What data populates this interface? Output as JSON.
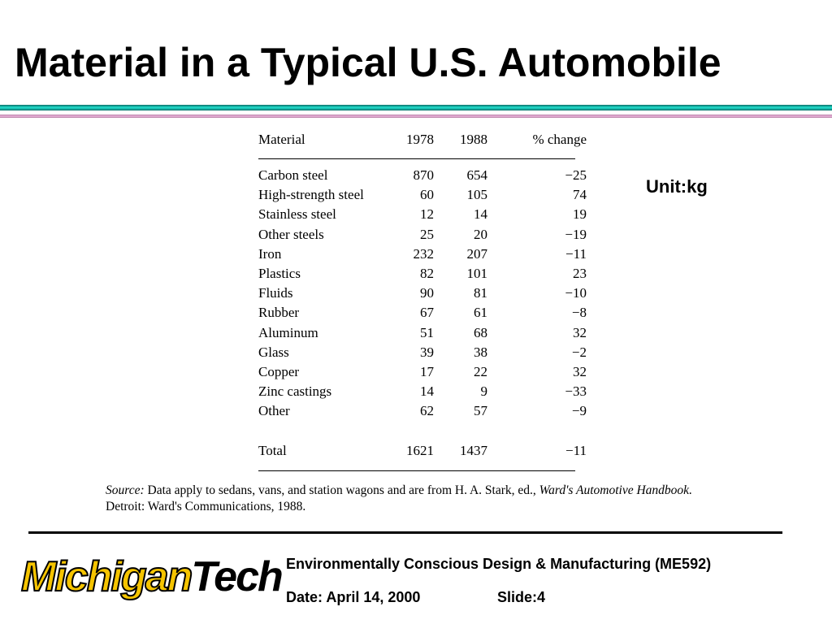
{
  "header": {
    "title": "Material in a Typical U.S. Automobile"
  },
  "unit": "Unit:kg",
  "table": {
    "columns": [
      "Material",
      "1978",
      "1988",
      "% change"
    ],
    "rows": [
      [
        "Carbon steel",
        "870",
        "654",
        "−25"
      ],
      [
        "High-strength steel",
        "60",
        "105",
        "74"
      ],
      [
        "Stainless steel",
        "12",
        "14",
        "19"
      ],
      [
        "Other steels",
        "25",
        "20",
        "−19"
      ],
      [
        "Iron",
        "232",
        "207",
        "−11"
      ],
      [
        "Plastics",
        "82",
        "101",
        "23"
      ],
      [
        "Fluids",
        "90",
        "81",
        "−10"
      ],
      [
        "Rubber",
        "67",
        "61",
        "−8"
      ],
      [
        "Aluminum",
        "51",
        "68",
        "32"
      ],
      [
        "Glass",
        "39",
        "38",
        "−2"
      ],
      [
        "Copper",
        "17",
        "22",
        "32"
      ],
      [
        "Zinc castings",
        "14",
        "9",
        "−33"
      ],
      [
        "Other",
        "62",
        "57",
        "−9"
      ]
    ],
    "total": [
      "Total",
      "1621",
      "1437",
      "−11"
    ]
  },
  "source": {
    "label": "Source:",
    "text": "Data apply to sedans, vans, and station wagons and are from H. A. Stark, ed.,",
    "book": "Ward's Automotive Handbook.",
    "rest": "Detroit: Ward's Communications, 1988."
  },
  "footer": {
    "course": "Environmentally Conscious Design & Manufacturing (ME592)",
    "date": "Date: April 14, 2000",
    "slide": "Slide:4",
    "logo": {
      "first": "Michigan",
      "second": "Tech"
    }
  }
}
